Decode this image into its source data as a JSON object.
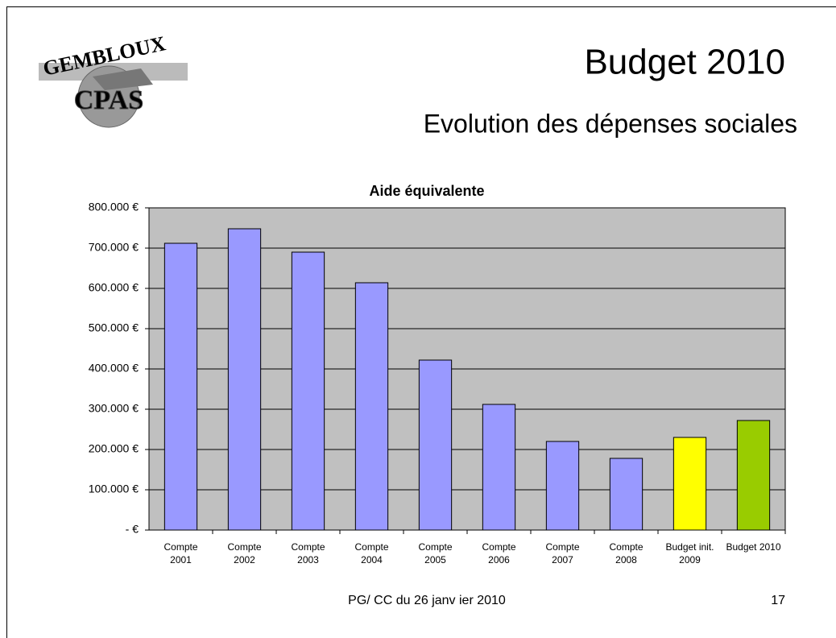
{
  "slide": {
    "title": "Budget 2010",
    "subtitle": "Evolution des dépenses sociales",
    "footer": "PG/ CC du 26 janv ier 2010",
    "page_number": "17",
    "logo_top": "GEMBLOUX",
    "logo_mid": "CPAS"
  },
  "chart_data": {
    "type": "bar",
    "title": "Aide équivalente",
    "categories": [
      "Compte 2001",
      "Compte 2002",
      "Compte 2003",
      "Compte 2004",
      "Compte 2005",
      "Compte 2006",
      "Compte 2007",
      "Compte 2008",
      "Budget init. 2009",
      "Budget 2010"
    ],
    "values": [
      712000,
      748000,
      690000,
      614000,
      422000,
      312000,
      220000,
      178000,
      230000,
      272000
    ],
    "colors": [
      "#9999ff",
      "#9999ff",
      "#9999ff",
      "#9999ff",
      "#9999ff",
      "#9999ff",
      "#9999ff",
      "#9999ff",
      "#ffff00",
      "#99cc00"
    ],
    "ylim": [
      0,
      800000
    ],
    "yticks": [
      {
        "value": 0,
        "label": "- €"
      },
      {
        "value": 100000,
        "label": "100.000 €"
      },
      {
        "value": 200000,
        "label": "200.000 €"
      },
      {
        "value": 300000,
        "label": "300.000 €"
      },
      {
        "value": 400000,
        "label": "400.000 €"
      },
      {
        "value": 500000,
        "label": "500.000 €"
      },
      {
        "value": 600000,
        "label": "600.000 €"
      },
      {
        "value": 700000,
        "label": "700.000 €"
      },
      {
        "value": 800000,
        "label": "800.000 €"
      }
    ],
    "grid": true,
    "plot_background": "#c0c0c0"
  }
}
